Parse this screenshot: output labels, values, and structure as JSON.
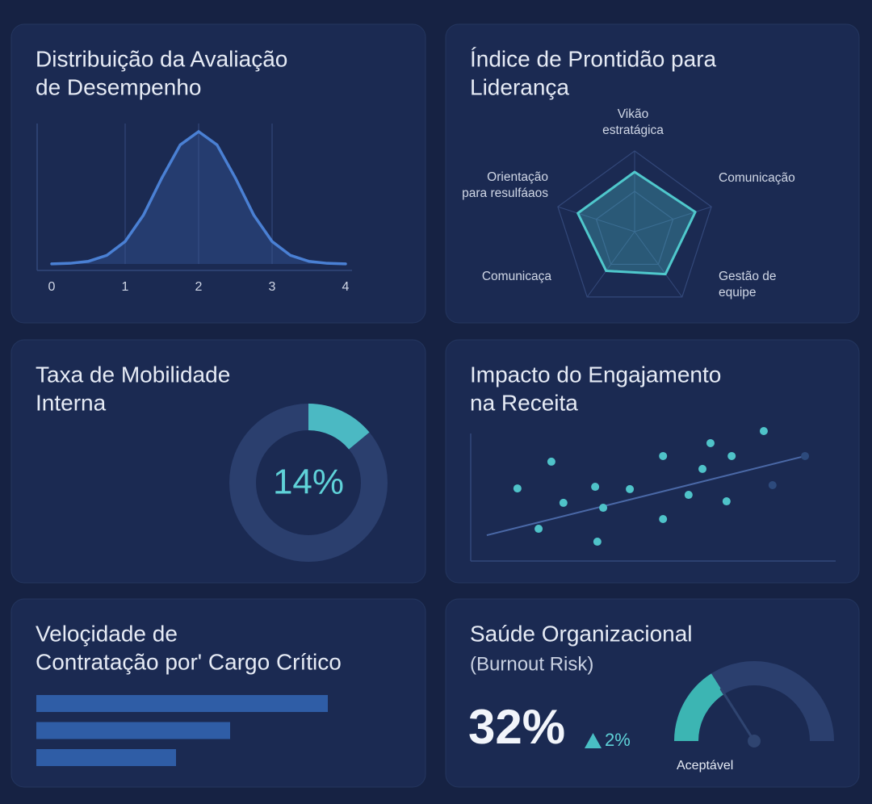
{
  "chart_data": [
    {
      "type": "area",
      "title": [
        "Distribuição da Avaliação",
        "de Desempenho"
      ],
      "x": [
        0,
        0.25,
        0.5,
        0.75,
        1,
        1.25,
        1.5,
        1.75,
        2,
        2.25,
        2.5,
        2.75,
        3,
        3.25,
        3.5,
        3.75,
        4
      ],
      "values": [
        0.001,
        0.005,
        0.02,
        0.065,
        0.17,
        0.37,
        0.65,
        0.9,
        1,
        0.9,
        0.65,
        0.37,
        0.17,
        0.065,
        0.02,
        0.005,
        0.001
      ],
      "xlim": [
        0,
        4
      ],
      "ylim": [
        0,
        1
      ],
      "xticks": [
        0,
        1,
        2,
        3,
        4
      ],
      "color": "#4a80d4",
      "grid": true
    },
    {
      "type": "radar",
      "title": [
        "Índice de Prontidão para",
        "Liderança"
      ],
      "categories": [
        [
          "Vikão",
          "estratágica"
        ],
        [
          "Comunicação"
        ],
        [
          "Gestão de",
          "equipe"
        ],
        [
          "Comunicaça"
        ],
        [
          "Orientação",
          "para resulfáaos"
        ]
      ],
      "values": [
        0.74,
        0.79,
        0.65,
        0.6,
        0.74
      ],
      "rlim": [
        0,
        1
      ],
      "rticks": [
        0.5,
        1
      ],
      "color": "#4fc8cc"
    },
    {
      "type": "donut",
      "title": [
        "Taxa de Mobilidade",
        "Interna"
      ],
      "value": 14,
      "value_label": "14%",
      "lim": [
        0,
        100
      ],
      "color": "#4bb9c3",
      "track_color": "#2b3f6e"
    },
    {
      "type": "scatter",
      "title": [
        "Impacto do Engajamento",
        "na Receita"
      ],
      "series": [
        {
          "color": "#4fc3c9",
          "x": [
            12.8,
            22.1,
            18.6,
            25.4,
            34.1,
            36.3,
            34.7,
            43.6,
            52.7,
            52.7,
            59.7,
            63.5,
            65.7,
            70.1,
            71.5,
            80.3
          ],
          "values": [
            52.9,
            72.4,
            23.5,
            42.4,
            54.1,
            38.8,
            14.1,
            52.4,
            76.5,
            30.6,
            48.2,
            67.1,
            85.9,
            43.5,
            76.5,
            94.7
          ]
        },
        {
          "color": "#2d4a7c",
          "x": [
            82.7,
            91.6
          ],
          "values": [
            55.3,
            76.5
          ]
        }
      ],
      "trend": {
        "x": [
          4.4,
          91.6
        ],
        "values": [
          18.8,
          76.5
        ],
        "color": "#4a68a6"
      },
      "xlim": [
        0,
        100
      ],
      "ylim": [
        0,
        100
      ]
    },
    {
      "type": "hbar",
      "title": [
        "Veloçidade de",
        "Contratação por' Cargo Crítico"
      ],
      "categories": [
        null,
        null,
        null
      ],
      "values": [
        361,
        240,
        173
      ],
      "xlim": [
        0,
        400
      ],
      "color": "#2f5da6"
    },
    {
      "type": "gauge",
      "title": [
        "Saúde Organizacional"
      ],
      "subtitle": "(Burnout Risk)",
      "value": 32,
      "value_label": "32%",
      "delta": {
        "value": 2,
        "label": "2%"
      },
      "status": "Aceptável",
      "lim": [
        0,
        100
      ],
      "color": "#3cb5b3",
      "track_color": "#2b3f6e"
    }
  ]
}
